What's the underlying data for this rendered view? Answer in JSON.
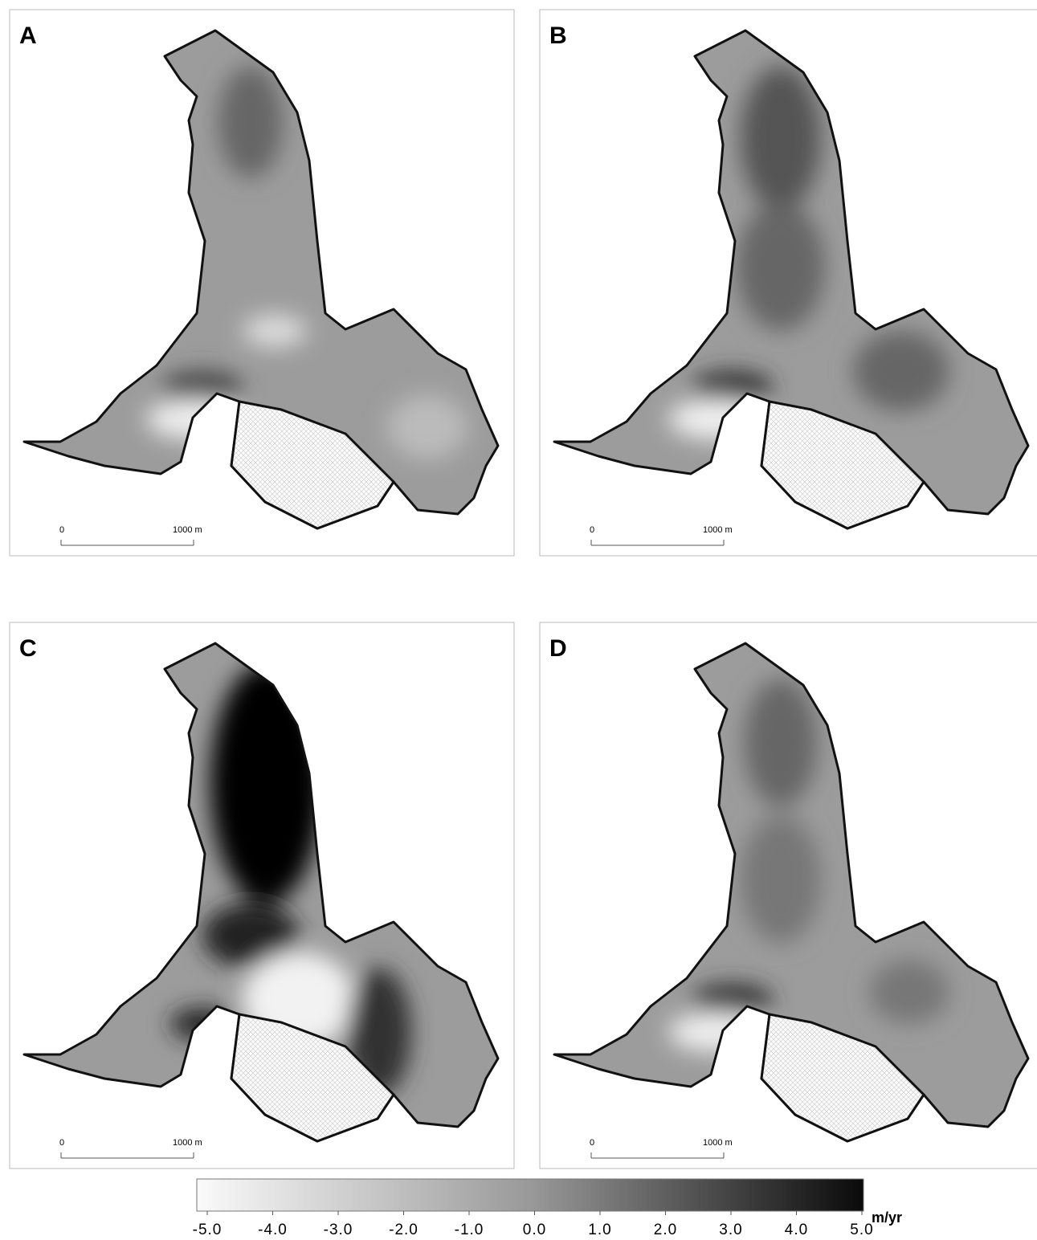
{
  "panels": [
    {
      "label": "A",
      "scale_start": "0",
      "scale_end": "1000 m"
    },
    {
      "label": "B",
      "scale_start": "0",
      "scale_end": "1000 m"
    },
    {
      "label": "C",
      "scale_start": "0",
      "scale_end": "1000 m"
    },
    {
      "label": "D",
      "scale_start": "0",
      "scale_end": "1000 m"
    }
  ],
  "colorbar": {
    "unit": "m/yr",
    "lim": [
      -5,
      5
    ],
    "ticks": [
      {
        "value": -5,
        "label": "-5.0"
      },
      {
        "value": -4,
        "label": "-4.0"
      },
      {
        "value": -3,
        "label": "-3.0"
      },
      {
        "value": -2,
        "label": "-2.0"
      },
      {
        "value": -1,
        "label": "-1.0"
      },
      {
        "value": 0,
        "label": "0.0"
      },
      {
        "value": 1,
        "label": "1.0"
      },
      {
        "value": 2,
        "label": "2.0"
      },
      {
        "value": 3,
        "label": "3.0"
      },
      {
        "value": 4,
        "label": "4.0"
      },
      {
        "value": 5,
        "label": "5.0"
      }
    ]
  }
}
